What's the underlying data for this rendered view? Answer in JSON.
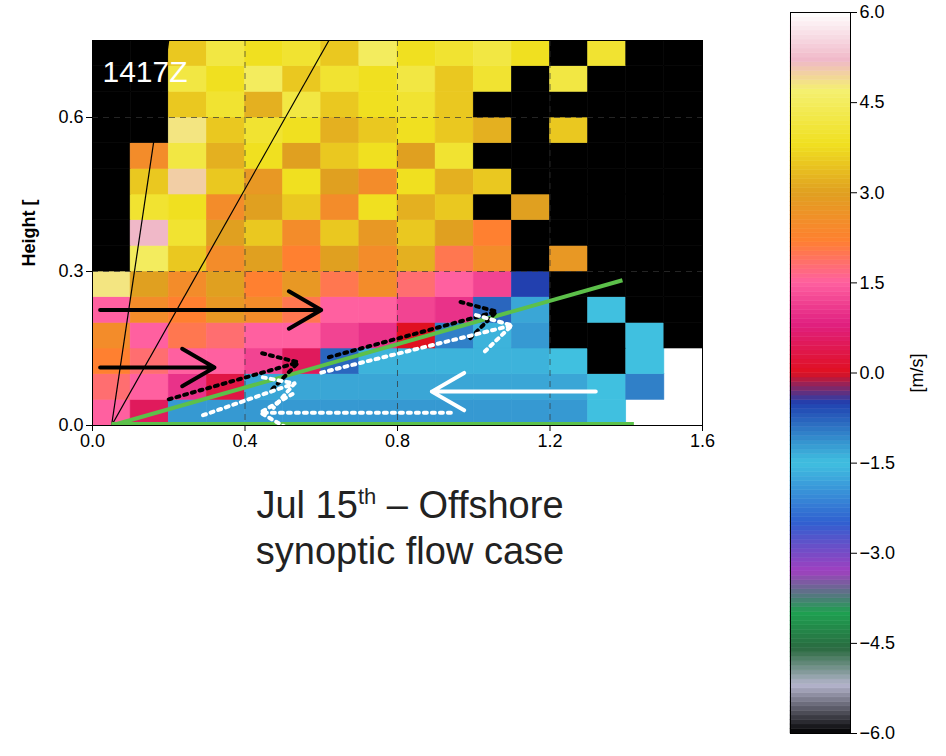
{
  "chart_data": {
    "type": "heatmap",
    "title": "1417Z",
    "caption": "Jul 15th – Offshore synoptic flow case",
    "ylabel": "Height [",
    "xlim": [
      0,
      1.6
    ],
    "ylim": [
      0,
      0.75
    ],
    "xticks": [
      {
        "value": 0,
        "label": "0.0"
      },
      {
        "value": 0.4,
        "label": "0.4"
      },
      {
        "value": 0.8,
        "label": "0.8"
      },
      {
        "value": 1.2,
        "label": "1.2"
      },
      {
        "value": 1.6,
        "label": "1.6"
      }
    ],
    "yticks": [
      {
        "value": 0,
        "label": "0.0"
      },
      {
        "value": 0.3,
        "label": "0.3"
      },
      {
        "value": 0.6,
        "label": "0.6"
      }
    ],
    "grid": true,
    "x_edges": [
      0,
      0.1,
      0.2,
      0.3,
      0.4,
      0.5,
      0.6,
      0.7,
      0.8,
      0.9,
      1.0,
      1.1,
      1.2,
      1.3,
      1.4,
      1.5,
      1.6
    ],
    "y_edges": [
      0,
      0.05,
      0.1,
      0.15,
      0.2,
      0.25,
      0.3,
      0.35,
      0.4,
      0.45,
      0.5,
      0.55,
      0.6,
      0.65,
      0.7,
      0.75
    ],
    "cells": [
      [
        1.5,
        0.5,
        -1.2,
        -1.2,
        -1.2,
        -1.2,
        -1.2,
        -1.2,
        -1.2,
        -1.2,
        -1.2,
        -1.2,
        -1.2,
        -1.5,
        null,
        null
      ],
      [
        1.8,
        1.5,
        1.0,
        0.3,
        -1.3,
        -1.3,
        -1.3,
        -1.3,
        -1.3,
        -1.3,
        -1.3,
        -1.3,
        -1.3,
        -1.5,
        -1.0,
        null
      ],
      [
        2.2,
        1.8,
        1.5,
        1.5,
        1.2,
        0.5,
        -0.8,
        -1.4,
        -1.4,
        -1.4,
        -1.4,
        -1.4,
        -1.5,
        -6,
        -1.5,
        null
      ],
      [
        2.5,
        1.5,
        2.0,
        1.8,
        1.5,
        1.5,
        1.2,
        1.0,
        0.0,
        -1.0,
        -1.4,
        -1.2,
        -6,
        -6,
        -1.5,
        -6
      ],
      [
        1.5,
        2.5,
        2.2,
        2.8,
        2.5,
        2.0,
        1.5,
        1.5,
        1.2,
        1.0,
        -0.8,
        -1.3,
        -6,
        -1.5,
        -6,
        -6
      ],
      [
        4.8,
        3.0,
        2.5,
        3.0,
        2.2,
        2.8,
        2.0,
        2.5,
        1.8,
        1.5,
        1.2,
        -0.5,
        -6,
        -6,
        -6,
        -6
      ],
      [
        -6,
        4.5,
        3.5,
        2.5,
        3.0,
        2.2,
        3.0,
        2.5,
        3.2,
        2.0,
        2.5,
        -6,
        2.8,
        -6,
        -6,
        -6
      ],
      [
        -6,
        5.2,
        4.0,
        3.0,
        3.5,
        2.5,
        3.5,
        2.8,
        3.5,
        3.0,
        2.2,
        -6,
        -6,
        -6,
        -6,
        -6
      ],
      [
        -6,
        4.0,
        3.8,
        2.5,
        3.0,
        3.5,
        2.5,
        3.8,
        3.2,
        3.5,
        -6,
        3.0,
        -6,
        -6,
        -6,
        -6
      ],
      [
        -6,
        3.5,
        5.0,
        3.5,
        2.8,
        3.8,
        3.0,
        2.5,
        3.8,
        3.2,
        3.5,
        -6,
        -6,
        -6,
        -6,
        -6
      ],
      [
        -6,
        2.5,
        4.2,
        3.2,
        3.8,
        3.0,
        3.5,
        3.8,
        3.0,
        4.0,
        -6,
        -6,
        -6,
        -6,
        -6,
        -6
      ],
      [
        -6,
        -6,
        4.8,
        3.5,
        4.0,
        3.8,
        3.2,
        3.5,
        3.8,
        3.5,
        3.2,
        -6,
        3.5,
        -6,
        -6,
        -6
      ],
      [
        -6,
        -6,
        3.5,
        4.0,
        3.2,
        4.2,
        3.5,
        3.8,
        4.0,
        3.5,
        -6,
        -6,
        -6,
        -6,
        -6,
        -6
      ],
      [
        -6,
        -6,
        4.2,
        3.8,
        4.5,
        3.5,
        4.0,
        3.8,
        4.2,
        3.5,
        4.0,
        -6,
        4.2,
        -6,
        -6,
        -6
      ],
      [
        -6,
        -6,
        3.5,
        4.2,
        3.8,
        4.0,
        3.5,
        4.5,
        3.8,
        4.0,
        4.2,
        3.8,
        -6,
        4.0,
        -6,
        -6
      ]
    ],
    "colorbar": {
      "range": [
        -6,
        6
      ],
      "ticks": [
        {
          "value": -6,
          "label": "−6.0"
        },
        {
          "value": -4.5,
          "label": "−4.5"
        },
        {
          "value": -3,
          "label": "−3.0"
        },
        {
          "value": -1.5,
          "label": "−1.5"
        },
        {
          "value": 0,
          "label": "0.0"
        },
        {
          "value": 1.5,
          "label": "1.5"
        },
        {
          "value": 3,
          "label": "3.0"
        },
        {
          "value": 4.5,
          "label": "4.5"
        },
        {
          "value": 6,
          "label": "6.0"
        }
      ],
      "label": "[m/s]"
    },
    "lines": [
      {
        "x1": 0.05,
        "y1": 0.0,
        "x2": 0.62,
        "y2": 0.75,
        "color": "black",
        "line_style": "solid"
      },
      {
        "x1": 0.05,
        "y1": 0.0,
        "x2": 0.2,
        "y2": 0.75,
        "color": "black",
        "line_style": "solid"
      },
      {
        "x1": 0.05,
        "y1": 0.0,
        "x2": 1.39,
        "y2": 0.283,
        "color": "#5cc04a",
        "line_style": "solid"
      },
      {
        "x1": 0.05,
        "y1": 0.003,
        "x2": 1.42,
        "y2": 0.003,
        "color": "#5cc04a",
        "line_style": "solid"
      }
    ],
    "arrows": [
      {
        "x1": 0.02,
        "y1": 0.225,
        "x2": 0.6,
        "y2": 0.225,
        "color": "black",
        "line_style": "solid"
      },
      {
        "x1": 0.02,
        "y1": 0.113,
        "x2": 0.32,
        "y2": 0.113,
        "color": "black",
        "line_style": "solid"
      },
      {
        "x1": 1.32,
        "y1": 0.066,
        "x2": 0.89,
        "y2": 0.066,
        "color": "white",
        "line_style": "solid"
      },
      {
        "x1": 0.94,
        "y1": 0.025,
        "x2": 0.44,
        "y2": 0.025,
        "color": "white",
        "line_style": "dotted"
      },
      {
        "x1": 0.2,
        "y1": 0.051,
        "x2": 0.54,
        "y2": 0.123,
        "color": "black",
        "line_style": "dotted"
      },
      {
        "x1": 0.62,
        "y1": 0.133,
        "x2": 1.06,
        "y2": 0.222,
        "color": "black",
        "line_style": "dotted"
      },
      {
        "x1": 0.29,
        "y1": 0.02,
        "x2": 0.53,
        "y2": 0.082,
        "color": "white",
        "line_style": "dotted"
      },
      {
        "x1": 0.6,
        "y1": 0.103,
        "x2": 1.1,
        "y2": 0.195,
        "color": "white",
        "line_style": "dotted"
      }
    ]
  }
}
